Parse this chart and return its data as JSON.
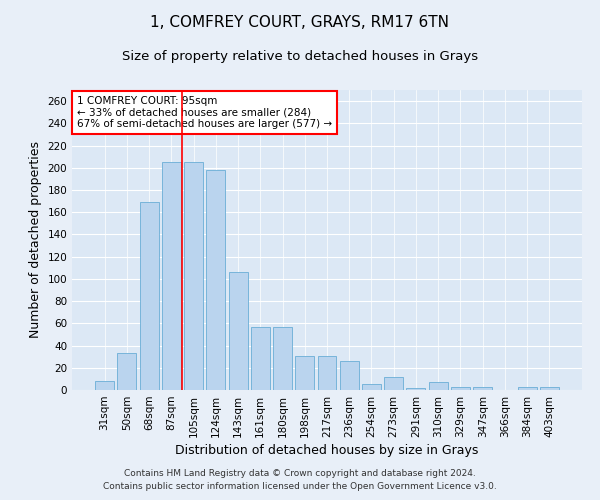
{
  "title": "1, COMFREY COURT, GRAYS, RM17 6TN",
  "subtitle": "Size of property relative to detached houses in Grays",
  "xlabel": "Distribution of detached houses by size in Grays",
  "ylabel": "Number of detached properties",
  "categories": [
    "31sqm",
    "50sqm",
    "68sqm",
    "87sqm",
    "105sqm",
    "124sqm",
    "143sqm",
    "161sqm",
    "180sqm",
    "198sqm",
    "217sqm",
    "236sqm",
    "254sqm",
    "273sqm",
    "291sqm",
    "310sqm",
    "329sqm",
    "347sqm",
    "366sqm",
    "384sqm",
    "403sqm"
  ],
  "values": [
    8,
    33,
    169,
    205,
    205,
    198,
    106,
    57,
    57,
    31,
    31,
    26,
    5,
    12,
    2,
    7,
    3,
    3,
    0,
    3,
    3
  ],
  "bar_color": "#bad4ee",
  "bar_edge_color": "#6aaed6",
  "vline_x": 3.5,
  "vline_color": "red",
  "annotation_text": "1 COMFREY COURT: 95sqm\n← 33% of detached houses are smaller (284)\n67% of semi-detached houses are larger (577) →",
  "annotation_box_color": "white",
  "annotation_box_edgecolor": "red",
  "ylim": [
    0,
    270
  ],
  "yticks": [
    0,
    20,
    40,
    60,
    80,
    100,
    120,
    140,
    160,
    180,
    200,
    220,
    240,
    260
  ],
  "footer1": "Contains HM Land Registry data © Crown copyright and database right 2024.",
  "footer2": "Contains public sector information licensed under the Open Government Licence v3.0.",
  "bg_color": "#e8eff8",
  "plot_bg_color": "#dce8f5",
  "grid_color": "white",
  "title_fontsize": 11,
  "subtitle_fontsize": 9.5,
  "axis_label_fontsize": 9,
  "tick_fontsize": 7.5,
  "footer_fontsize": 6.5
}
